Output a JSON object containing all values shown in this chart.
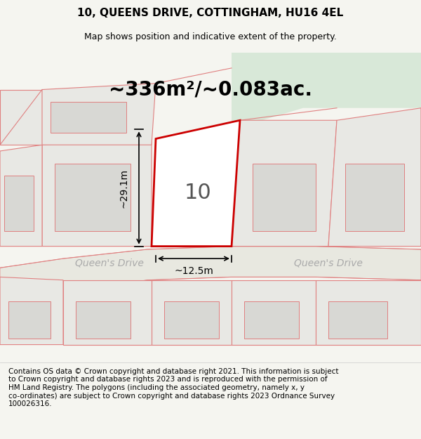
{
  "title_line1": "10, QUEENS DRIVE, COTTINGHAM, HU16 4EL",
  "title_line2": "Map shows position and indicative extent of the property.",
  "area_text": "~336m²/~0.083ac.",
  "number_label": "10",
  "dim_height": "~29.1m",
  "dim_width": "~12.5m",
  "street_label_left": "Queen's Drive",
  "street_label_right": "Queen's Drive",
  "footer_text": "Contains OS data © Crown copyright and database right 2021. This information is subject to Crown copyright and database rights 2023 and is reproduced with the permission of HM Land Registry. The polygons (including the associated geometry, namely x, y co-ordinates) are subject to Crown copyright and database rights 2023 Ordnance Survey 100026316.",
  "bg_color": "#f5f5f0",
  "map_bg": "#f0f0eb",
  "plot_fill": "#ffffff",
  "plot_border_color": "#cc0000",
  "neighbor_fill": "#e8e8e4",
  "neighbor_border": "#e08080",
  "road_color": "#f5f5f0",
  "green_area_color": "#d8e8d8",
  "footer_bg": "#ffffff",
  "title_fontsize": 11,
  "subtitle_fontsize": 9,
  "area_fontsize": 20,
  "number_fontsize": 22,
  "dim_fontsize": 10,
  "street_fontsize": 10,
  "footer_fontsize": 7.5
}
